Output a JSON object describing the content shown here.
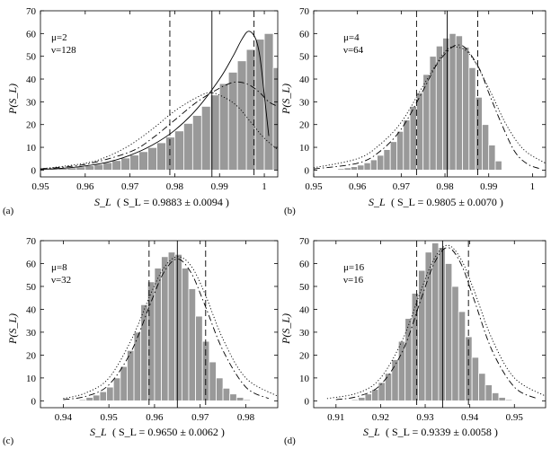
{
  "figure": {
    "background": "#ffffff",
    "bar_color": "#999999",
    "bar_edge": "#ffffff",
    "line_color": "#000000"
  },
  "chart_data": [
    {
      "type": "bar",
      "panel_label": "(a)",
      "params": [
        "μ=2",
        "ν=128"
      ],
      "ylabel": "P(S_L)",
      "xlabel": "S_L",
      "stat": "( S_L = 0.9883 ± 0.0094 )",
      "xlim": [
        0.95,
        1.003
      ],
      "ylim": [
        -3,
        70
      ],
      "xticks": [
        0.95,
        0.96,
        0.97,
        0.98,
        0.99,
        1
      ],
      "xtick_labels": [
        "0.95",
        "0.96",
        "0.97",
        "0.98",
        "0.99",
        "1"
      ],
      "yticks": [
        0,
        10,
        20,
        30,
        40,
        50,
        60,
        70
      ],
      "bin_start": 0.95,
      "bin_width": 0.002,
      "values": [
        0.3,
        0.5,
        0.7,
        1,
        1.4,
        1.9,
        2.5,
        3.3,
        4.2,
        5.3,
        6.6,
        8.1,
        9.9,
        12,
        14.5,
        17.2,
        20.5,
        24,
        28,
        33,
        38,
        43,
        48,
        53,
        57.5,
        60,
        45
      ],
      "mean": 0.9883,
      "std": 0.0094,
      "curves": [
        {
          "name": "solid",
          "style": "solid",
          "x": [
            0.95,
            0.955,
            0.96,
            0.965,
            0.97,
            0.975,
            0.98,
            0.985,
            0.99,
            0.993,
            0.995,
            0.9965,
            0.998,
            0.999,
            1.0,
            1.001
          ],
          "y": [
            0.3,
            0.8,
            1.8,
            3.5,
            6.5,
            11,
            17.5,
            27,
            40,
            50,
            57.5,
            61,
            58,
            50,
            33,
            15
          ]
        },
        {
          "name": "dash-dot",
          "style": "dashdot",
          "x": [
            0.95,
            0.96,
            0.97,
            0.975,
            0.98,
            0.985,
            0.99,
            0.993,
            0.995,
            0.997,
            0.999,
            1.001,
            1.003
          ],
          "y": [
            0.5,
            2.5,
            8,
            14,
            22,
            30,
            36,
            38.5,
            38.5,
            37,
            34,
            30,
            28
          ]
        },
        {
          "name": "dotted",
          "style": "dotted",
          "x": [
            0.95,
            0.96,
            0.965,
            0.97,
            0.975,
            0.98,
            0.985,
            0.988,
            0.991,
            0.994,
            0.997,
            1.0,
            1.003
          ],
          "y": [
            0.5,
            3,
            6,
            11,
            18,
            26,
            32,
            34,
            32,
            28,
            21,
            14,
            9
          ]
        }
      ]
    },
    {
      "type": "bar",
      "panel_label": "(b)",
      "params": [
        "μ=4",
        "ν=64"
      ],
      "ylabel": "P(S_L)",
      "xlabel": "S_L",
      "stat": "( S_L = 0.9805 ± 0.0070 )",
      "xlim": [
        0.95,
        1.003
      ],
      "ylim": [
        -3,
        70
      ],
      "xticks": [
        0.95,
        0.96,
        0.97,
        0.98,
        0.99,
        1
      ],
      "xtick_labels": [
        "0.95",
        "0.96",
        "0.97",
        "0.98",
        "0.99",
        "1"
      ],
      "yticks": [
        0,
        10,
        20,
        30,
        40,
        50,
        60,
        70
      ],
      "bin_start": 0.954,
      "bin_width": 0.0015,
      "values": [
        0.3,
        0.6,
        1,
        1.5,
        2.2,
        3.2,
        4.5,
        6.5,
        9,
        12.5,
        17,
        22,
        28,
        34,
        42,
        50,
        54.5,
        58,
        60,
        59,
        54,
        45,
        32,
        20,
        11,
        4
      ],
      "mean": 0.9805,
      "std": 0.007,
      "curves": [
        {
          "name": "dash-dot",
          "style": "dashdot",
          "x": [
            0.95,
            0.96,
            0.965,
            0.97,
            0.975,
            0.978,
            0.981,
            0.983,
            0.985,
            0.988,
            0.99,
            0.993,
            0.996,
            0.999,
            1.002
          ],
          "y": [
            0.5,
            3,
            8,
            18,
            35,
            46,
            53,
            55,
            53,
            44,
            34,
            20,
            8,
            2.5,
            0.5
          ]
        },
        {
          "name": "dotted",
          "style": "dotted",
          "x": [
            0.95,
            0.96,
            0.965,
            0.97,
            0.975,
            0.98,
            0.983,
            0.986,
            0.99,
            0.994,
            0.998,
            1.003
          ],
          "y": [
            1,
            5,
            11,
            21,
            37,
            52,
            54,
            50,
            36,
            20,
            9,
            3
          ]
        }
      ]
    },
    {
      "type": "bar",
      "panel_label": "(c)",
      "params": [
        "μ=8",
        "ν=32"
      ],
      "ylabel": "P(S_L)",
      "xlabel": "S_L",
      "stat": "( S_L = 0.9650 ± 0.0062 )",
      "xlim": [
        0.935,
        0.987
      ],
      "ylim": [
        -3,
        70
      ],
      "xticks": [
        0.94,
        0.95,
        0.96,
        0.97,
        0.98
      ],
      "xtick_labels": [
        "0.94",
        "0.95",
        "0.96",
        "0.97",
        "0.98"
      ],
      "yticks": [
        0,
        10,
        20,
        30,
        40,
        50,
        60,
        70
      ],
      "bin_start": 0.9435,
      "bin_width": 0.0015,
      "values": [
        0.5,
        1.5,
        2.5,
        4,
        6,
        10,
        15,
        22,
        30,
        42,
        52,
        58,
        63,
        65,
        64,
        58,
        49,
        37,
        26,
        17,
        10,
        5.5,
        3,
        1.5,
        0.5
      ],
      "mean": 0.965,
      "std": 0.0062,
      "curves": [
        {
          "name": "dash-dot",
          "style": "dashdot",
          "x": [
            0.94,
            0.945,
            0.95,
            0.955,
            0.959,
            0.962,
            0.965,
            0.968,
            0.971,
            0.975,
            0.98,
            0.985
          ],
          "y": [
            0.5,
            2,
            7,
            22,
            42,
            56,
            62,
            56,
            42,
            22,
            6,
            1
          ]
        },
        {
          "name": "dotted",
          "style": "dotted",
          "x": [
            0.94,
            0.945,
            0.95,
            0.955,
            0.959,
            0.962,
            0.965,
            0.968,
            0.971,
            0.975,
            0.98,
            0.987
          ],
          "y": [
            1,
            3.5,
            10,
            27,
            46,
            58,
            63,
            59,
            47,
            27,
            10,
            2
          ]
        }
      ]
    },
    {
      "type": "bar",
      "panel_label": "(d)",
      "params": [
        "μ=16",
        "ν=16"
      ],
      "ylabel": "P(S_L)",
      "xlabel": "S_L",
      "stat": "( S_L = 0.9339 ± 0.0058 )",
      "xlim": [
        0.905,
        0.957
      ],
      "ylim": [
        -3,
        70
      ],
      "xticks": [
        0.91,
        0.92,
        0.93,
        0.94,
        0.95
      ],
      "xtick_labels": [
        "0.91",
        "0.92",
        "0.93",
        "0.94",
        "0.95"
      ],
      "yticks": [
        0,
        10,
        20,
        30,
        40,
        50,
        60,
        70
      ],
      "bin_start": 0.9135,
      "bin_width": 0.0015,
      "values": [
        0.5,
        1.5,
        3,
        5,
        8,
        12,
        18,
        26,
        36,
        47,
        57,
        65,
        69,
        67,
        60,
        50,
        39,
        28,
        19,
        12,
        7,
        3.5,
        1.5,
        0.5
      ],
      "mean": 0.9339,
      "std": 0.0058,
      "curves": [
        {
          "name": "dash-dot",
          "style": "dashdot",
          "x": [
            0.91,
            0.915,
            0.92,
            0.925,
            0.929,
            0.932,
            0.935,
            0.938,
            0.941,
            0.945,
            0.95,
            0.955
          ],
          "y": [
            0.5,
            2,
            7,
            22,
            44,
            60,
            67,
            60,
            44,
            22,
            6,
            1
          ]
        },
        {
          "name": "dotted",
          "style": "dotted",
          "x": [
            0.908,
            0.915,
            0.92,
            0.925,
            0.929,
            0.932,
            0.935,
            0.938,
            0.941,
            0.945,
            0.95,
            0.957
          ],
          "y": [
            1,
            3.5,
            10,
            27,
            48,
            62,
            68,
            62,
            48,
            27,
            10,
            2
          ]
        }
      ]
    }
  ]
}
